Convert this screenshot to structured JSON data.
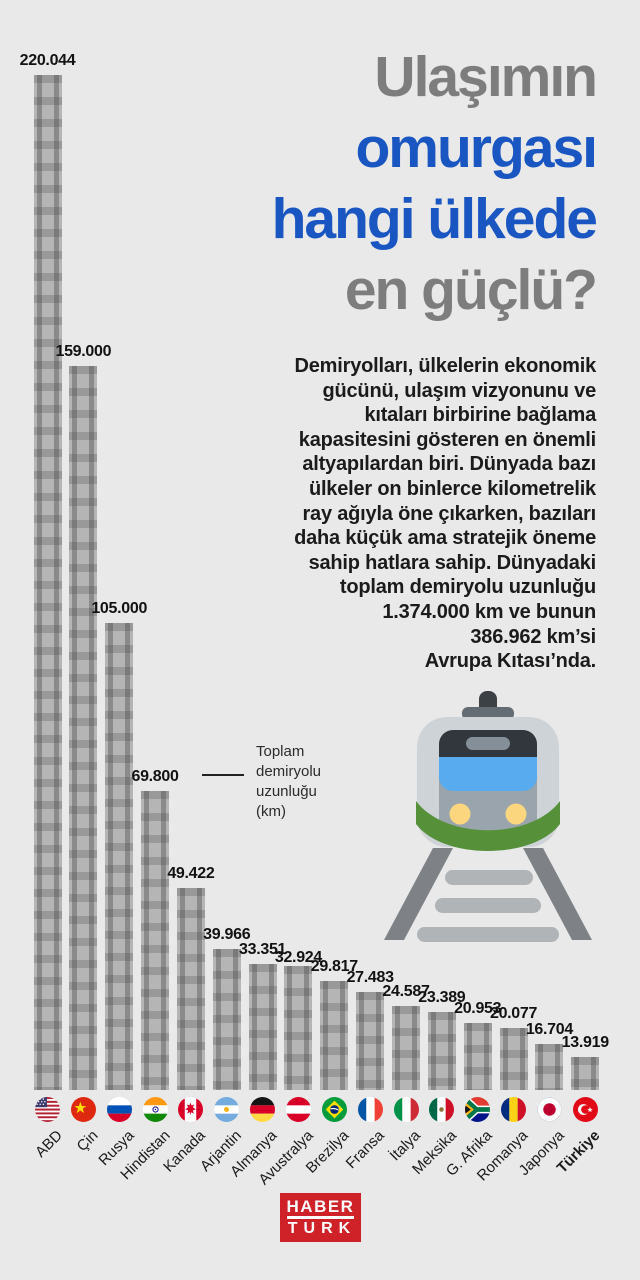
{
  "page": {
    "background": "#e9e9e9"
  },
  "title": {
    "lines": [
      {
        "text": "Ulaşımın",
        "color": "gray"
      },
      {
        "text": "omurgası",
        "color": "blue"
      },
      {
        "text": "hangi ülkede",
        "color": "blue"
      },
      {
        "text": "en güçlü?",
        "color": "gray"
      }
    ],
    "colors": {
      "gray": "#7d7d7d",
      "blue": "#1956c1"
    }
  },
  "intro": {
    "lines": [
      "Demiryolları, ülkelerin ekonomik",
      "gücünü, ulaşım vizyonunu ve",
      "kıtaları birbirine bağlama",
      "kapasitesini gösteren en önemli",
      "altyapılardan biri. Dünyada bazı",
      "ülkeler on binlerce kilometrelik",
      "ray ağıyla öne çıkarken, bazıları",
      "daha küçük ama stratejik öneme",
      "sahip hatlara sahip. Dünyadaki",
      "toplam demiryolu uzunluğu",
      "1.374.000 km ve bunun",
      "386.962 km’si",
      "Avrupa Kıtası’nda."
    ]
  },
  "annotation": {
    "label": "Toplam demiryolu uzunluğu (km)"
  },
  "chart_data": {
    "type": "bar",
    "title": "Toplam demiryolu uzunluğu (km)",
    "unit": "km",
    "categories": [
      "ABD",
      "Çin",
      "Rusya",
      "Hindistan",
      "Kanada",
      "Arjantin",
      "Almanya",
      "Avustralya",
      "Brezilya",
      "Fransa",
      "İtalya",
      "Meksika",
      "G. Afrika",
      "Romanya",
      "Japonya",
      "Türkiye"
    ],
    "values": [
      220044,
      159000,
      105000,
      69800,
      49422,
      39966,
      33351,
      32924,
      29817,
      27483,
      24587,
      23389,
      20953,
      20077,
      16704,
      13919
    ],
    "value_labels": [
      "220.044",
      "159.000",
      "105.000",
      "69.800",
      "49.422",
      "39.966",
      "33.351",
      "32.924",
      "29.817",
      "27.483",
      "24.587",
      "23.389",
      "20.953",
      "20.077",
      "16.704",
      "13.919"
    ],
    "flags": [
      "us",
      "cn",
      "ru",
      "in",
      "ca",
      "ar",
      "de",
      "at",
      "br",
      "fr",
      "it",
      "mx",
      "za",
      "ro",
      "jp",
      "tr"
    ],
    "highlighted_category": "Türkiye",
    "bar_color": "#a7a7a7",
    "ylim": [
      0,
      220044
    ],
    "grid": false,
    "legend": false
  },
  "logo": {
    "line1": "HABER",
    "line2": "TURK",
    "bg": "#cf2128"
  }
}
